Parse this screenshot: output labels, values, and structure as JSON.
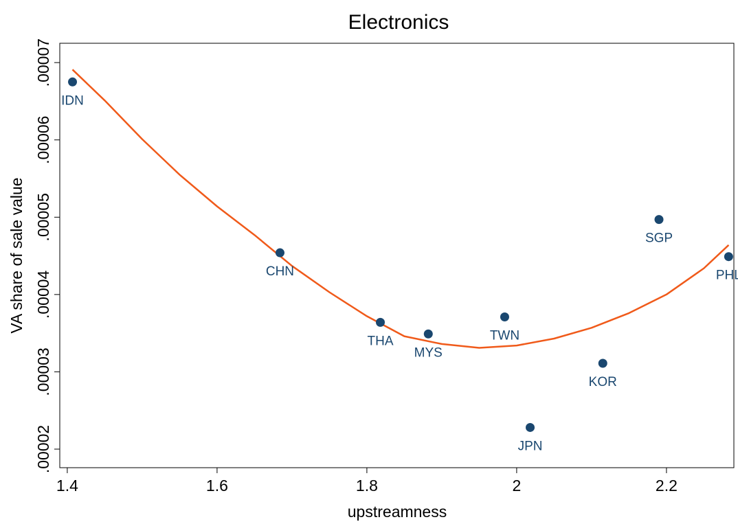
{
  "chart_data": {
    "type": "scatter",
    "title": "Electronics",
    "xlabel": "upstreamness",
    "ylabel": "VA share of sale value",
    "xlim": [
      1.39,
      2.29
    ],
    "ylim": [
      1.76e-05,
      7.25e-05
    ],
    "x_ticks": [
      1.4,
      1.6,
      1.8,
      2,
      2.2
    ],
    "x_tick_labels": [
      "1.4",
      "1.6",
      "1.8",
      "2",
      "2.2"
    ],
    "y_ticks": [
      2e-05,
      3e-05,
      4e-05,
      5e-05,
      6e-05,
      7e-05
    ],
    "y_tick_labels": [
      ".00002",
      ".00003",
      ".00004",
      ".00005",
      ".00006",
      ".00007"
    ],
    "grid": false,
    "legend": "none",
    "marker_color": "#1a476f",
    "fit_color": "#f05a1a",
    "points": [
      {
        "label": "IDN",
        "x": 1.407,
        "y": 6.75e-05,
        "label_pos": "below"
      },
      {
        "label": "CHN",
        "x": 1.684,
        "y": 4.54e-05,
        "label_pos": "below"
      },
      {
        "label": "THA",
        "x": 1.818,
        "y": 3.64e-05,
        "label_pos": "below"
      },
      {
        "label": "MYS",
        "x": 1.882,
        "y": 3.49e-05,
        "label_pos": "below"
      },
      {
        "label": "TWN",
        "x": 1.984,
        "y": 3.71e-05,
        "label_pos": "below"
      },
      {
        "label": "JPN",
        "x": 2.018,
        "y": 2.28e-05,
        "label_pos": "below"
      },
      {
        "label": "KOR",
        "x": 2.115,
        "y": 3.11e-05,
        "label_pos": "below"
      },
      {
        "label": "SGP",
        "x": 2.19,
        "y": 4.97e-05,
        "label_pos": "below"
      },
      {
        "label": "PHL",
        "x": 2.283,
        "y": 4.49e-05,
        "label_pos": "below"
      }
    ],
    "fit_line": {
      "type": "quadratic",
      "x": [
        1.407,
        1.45,
        1.5,
        1.55,
        1.6,
        1.65,
        1.7,
        1.75,
        1.8,
        1.85,
        1.9,
        1.95,
        2.0,
        2.05,
        2.1,
        2.15,
        2.2,
        2.25,
        2.283
      ],
      "y": [
        6.91e-05,
        6.51e-05,
        6.01e-05,
        5.55e-05,
        5.14e-05,
        4.77e-05,
        4.37e-05,
        4.03e-05,
        3.72e-05,
        3.46e-05,
        3.36e-05,
        3.31e-05,
        3.34e-05,
        3.43e-05,
        3.57e-05,
        3.76e-05,
        4e-05,
        4.34e-05,
        4.64e-05
      ]
    }
  }
}
